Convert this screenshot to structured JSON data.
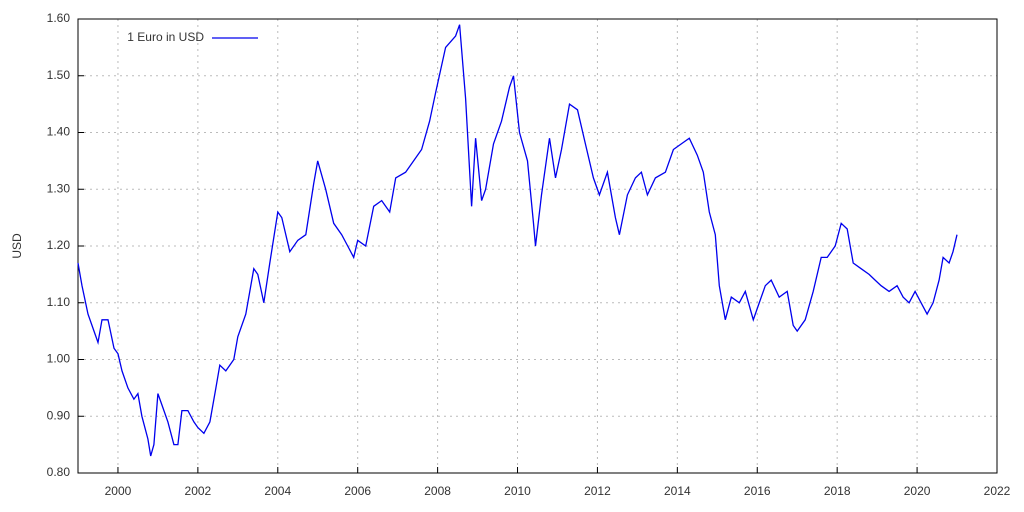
{
  "chart_data": {
    "type": "line",
    "ylabel": "USD",
    "grid": true,
    "legend": "top-left",
    "xlim": [
      1999,
      2022
    ],
    "xticks": [
      2000,
      2002,
      2004,
      2006,
      2008,
      2010,
      2012,
      2014,
      2016,
      2018,
      2020,
      2022
    ],
    "ylim": [
      0.8,
      1.6
    ],
    "yticks": [
      {
        "value": 0.8,
        "label": "0.80"
      },
      {
        "value": 0.9,
        "label": "0.90"
      },
      {
        "value": 1.0,
        "label": "1.00"
      },
      {
        "value": 1.1,
        "label": "1.10"
      },
      {
        "value": 1.2,
        "label": "1.20"
      },
      {
        "value": 1.3,
        "label": "1.30"
      },
      {
        "value": 1.4,
        "label": "1.40"
      },
      {
        "value": 1.5,
        "label": "1.50"
      },
      {
        "value": 1.6,
        "label": "1.60"
      }
    ],
    "x": [
      1999.0,
      1999.1,
      1999.25,
      1999.4,
      1999.5,
      1999.6,
      1999.75,
      1999.9,
      2000.0,
      2000.1,
      2000.25,
      2000.4,
      2000.5,
      2000.6,
      2000.75,
      2000.82,
      2000.9,
      2001.0,
      2001.1,
      2001.25,
      2001.4,
      2001.5,
      2001.6,
      2001.75,
      2001.9,
      2002.0,
      2002.15,
      2002.3,
      2002.45,
      2002.55,
      2002.7,
      2002.9,
      2003.0,
      2003.2,
      2003.4,
      2003.5,
      2003.65,
      2003.8,
      2004.0,
      2004.1,
      2004.3,
      2004.5,
      2004.7,
      2004.9,
      2005.0,
      2005.2,
      2005.4,
      2005.6,
      2005.75,
      2005.9,
      2006.0,
      2006.2,
      2006.4,
      2006.6,
      2006.8,
      2006.95,
      2007.2,
      2007.4,
      2007.6,
      2007.8,
      2007.95,
      2008.2,
      2008.45,
      2008.55,
      2008.7,
      2008.85,
      2008.95,
      2009.1,
      2009.2,
      2009.4,
      2009.6,
      2009.8,
      2009.9,
      2010.05,
      2010.25,
      2010.4,
      2010.45,
      2010.6,
      2010.8,
      2010.95,
      2011.1,
      2011.3,
      2011.5,
      2011.7,
      2011.9,
      2012.05,
      2012.25,
      2012.45,
      2012.55,
      2012.75,
      2012.95,
      2013.1,
      2013.25,
      2013.45,
      2013.7,
      2013.9,
      2014.1,
      2014.3,
      2014.5,
      2014.65,
      2014.8,
      2014.95,
      2015.05,
      2015.2,
      2015.35,
      2015.55,
      2015.7,
      2015.9,
      2016.0,
      2016.2,
      2016.35,
      2016.55,
      2016.75,
      2016.9,
      2017.0,
      2017.2,
      2017.4,
      2017.6,
      2017.75,
      2017.95,
      2018.1,
      2018.25,
      2018.4,
      2018.6,
      2018.8,
      2018.95,
      2019.1,
      2019.3,
      2019.5,
      2019.65,
      2019.8,
      2019.95,
      2020.1,
      2020.25,
      2020.4,
      2020.55,
      2020.65,
      2020.8,
      2020.9,
      2021.0
    ],
    "series": [
      {
        "name": "1 Euro in USD",
        "color": "#0000ee",
        "values": [
          1.17,
          1.13,
          1.08,
          1.05,
          1.03,
          1.07,
          1.07,
          1.02,
          1.01,
          0.98,
          0.95,
          0.93,
          0.94,
          0.9,
          0.86,
          0.83,
          0.85,
          0.94,
          0.92,
          0.89,
          0.85,
          0.85,
          0.91,
          0.91,
          0.89,
          0.88,
          0.87,
          0.89,
          0.95,
          0.99,
          0.98,
          1.0,
          1.04,
          1.08,
          1.16,
          1.15,
          1.1,
          1.17,
          1.26,
          1.25,
          1.19,
          1.21,
          1.22,
          1.31,
          1.35,
          1.3,
          1.24,
          1.22,
          1.2,
          1.18,
          1.21,
          1.2,
          1.27,
          1.28,
          1.26,
          1.32,
          1.33,
          1.35,
          1.37,
          1.42,
          1.47,
          1.55,
          1.57,
          1.59,
          1.46,
          1.27,
          1.39,
          1.28,
          1.3,
          1.38,
          1.42,
          1.48,
          1.5,
          1.4,
          1.35,
          1.24,
          1.2,
          1.29,
          1.39,
          1.32,
          1.37,
          1.45,
          1.44,
          1.38,
          1.32,
          1.29,
          1.33,
          1.25,
          1.22,
          1.29,
          1.32,
          1.33,
          1.29,
          1.32,
          1.33,
          1.37,
          1.38,
          1.39,
          1.36,
          1.33,
          1.26,
          1.22,
          1.13,
          1.07,
          1.11,
          1.1,
          1.12,
          1.07,
          1.09,
          1.13,
          1.14,
          1.11,
          1.12,
          1.06,
          1.05,
          1.07,
          1.12,
          1.18,
          1.18,
          1.2,
          1.24,
          1.23,
          1.17,
          1.16,
          1.15,
          1.14,
          1.13,
          1.12,
          1.13,
          1.11,
          1.1,
          1.12,
          1.1,
          1.08,
          1.1,
          1.14,
          1.18,
          1.17,
          1.19,
          1.22
        ]
      }
    ]
  }
}
